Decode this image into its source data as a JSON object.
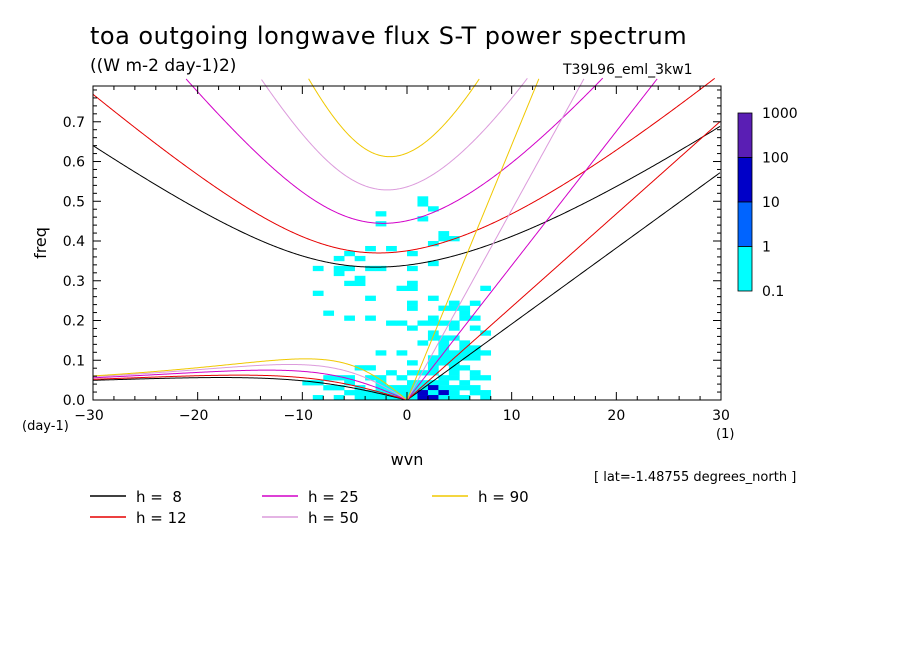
{
  "title": "toa outgoing longwave flux S-T power spectrum",
  "subtitle": "((W m-2 day-1)2)",
  "experiment": "T39L96_eml_3kw1",
  "footnote": "[ lat=-1.48755 degrees_north ]",
  "chart_data": {
    "type": "heatmap",
    "xlabel": "wvn",
    "ylabel": "freq",
    "x_unit": "(1)",
    "y_unit": "(day-1)",
    "xlim": [
      -30,
      30
    ],
    "ylim": [
      0,
      0.79
    ],
    "x_ticks": [
      -30,
      -20,
      -10,
      0,
      10,
      20,
      30
    ],
    "y_ticks": [
      0.0,
      0.1,
      0.2,
      0.3,
      0.4,
      0.5,
      0.6,
      0.7
    ],
    "colorbar": {
      "levels": [
        "0.1",
        "1",
        "10",
        "100",
        "1000"
      ],
      "colors": [
        "#00ffff",
        "#0064ff",
        "#0000c8",
        "#5a1eb4"
      ]
    },
    "series": [
      {
        "name": "h =  8",
        "color": "#000000",
        "h": 8
      },
      {
        "name": "h = 12",
        "color": "#e60000",
        "h": 12
      },
      {
        "name": "h = 25",
        "color": "#d200c8",
        "h": 25
      },
      {
        "name": "h = 50",
        "color": "#dc9bdc",
        "h": 50
      },
      {
        "name": "h = 90",
        "color": "#f0c800",
        "h": 90
      }
    ]
  }
}
